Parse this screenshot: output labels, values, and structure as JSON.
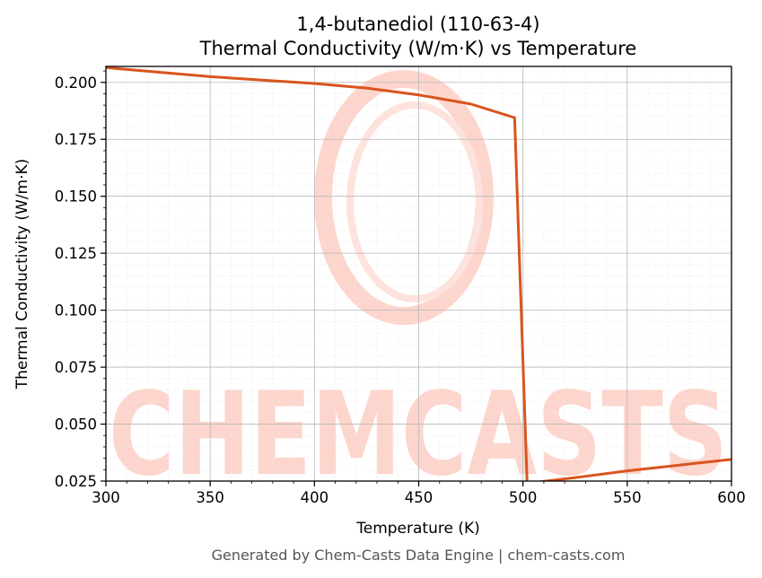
{
  "chart_data": {
    "type": "line",
    "title": "1,4-butanediol (110-63-4)",
    "subtitle": "Thermal Conductivity (W/m·K) vs Temperature",
    "xlabel": "Temperature (K)",
    "ylabel": "Thermal Conductivity (W/m·K)",
    "xlim": [
      300,
      600
    ],
    "ylim": [
      0.025,
      0.207
    ],
    "x_ticks": [
      300,
      350,
      400,
      450,
      500,
      550,
      600
    ],
    "x_tick_labels": [
      "300",
      "350",
      "400",
      "450",
      "500",
      "550",
      "600"
    ],
    "y_ticks": [
      0.025,
      0.05,
      0.075,
      0.1,
      0.125,
      0.15,
      0.175,
      0.2
    ],
    "y_tick_labels": [
      "0.025",
      "0.050",
      "0.075",
      "0.100",
      "0.125",
      "0.150",
      "0.175",
      "0.200"
    ],
    "grid": true,
    "series": [
      {
        "color": "#d9541e",
        "x": [
          300,
          325,
          350,
          375,
          400,
          425,
          450,
          475,
          496,
          502,
          525,
          550,
          575,
          600
        ],
        "y": [
          0.2065,
          0.2045,
          0.2025,
          0.201,
          0.1995,
          0.1975,
          0.1945,
          0.1905,
          0.1845,
          0.024,
          0.0265,
          0.0295,
          0.032,
          0.0345
        ]
      }
    ]
  },
  "watermark": {
    "text": "CHEMCASTS",
    "color": "#fdd5cc"
  },
  "footer": "Generated by Chem-Casts Data Engine | chem-casts.com"
}
